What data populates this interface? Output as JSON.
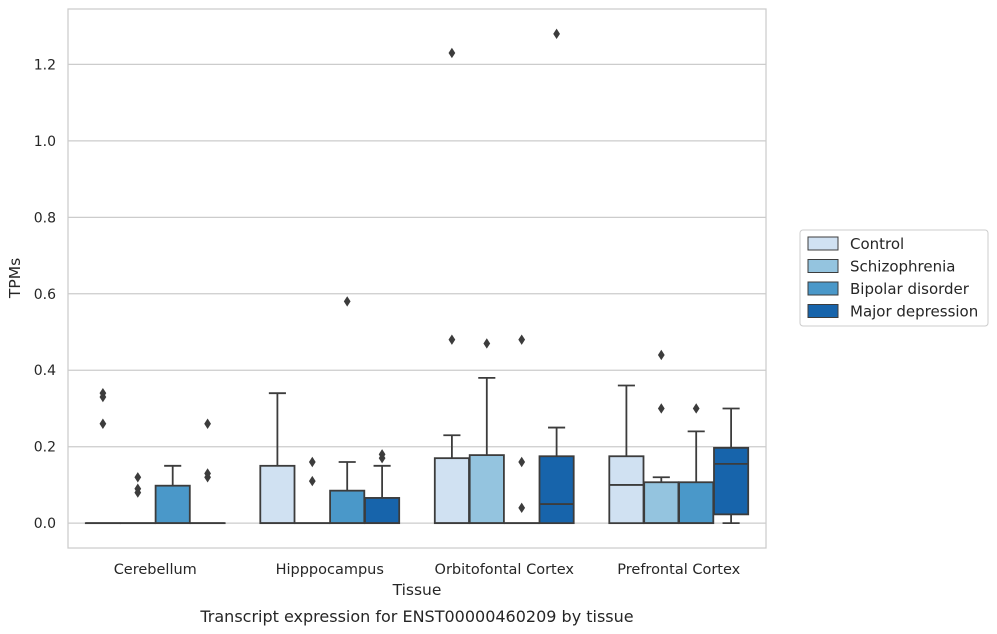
{
  "chart_data": {
    "type": "box",
    "title": "",
    "xlabel": "Tissue",
    "ylabel": "TPMs",
    "caption": "Transcript expression for ENST00000460209 by tissue",
    "ylim": [
      -0.065,
      1.345
    ],
    "yticks": [
      0.0,
      0.2,
      0.4,
      0.6,
      0.8,
      1.0,
      1.2
    ],
    "ytick_labels": [
      "0.0",
      "0.2",
      "0.4",
      "0.6",
      "0.8",
      "1.0",
      "1.2"
    ],
    "grid": "horizontal",
    "legend_position": "right",
    "categories": [
      "Cerebellum",
      "Hipppocampus",
      "Orbitofontal Cortex",
      "Prefrontal Cortex"
    ],
    "series": [
      {
        "name": "Control",
        "color": "#d0e1f2",
        "boxes": [
          {
            "q1": 0.0,
            "median": 0.0,
            "q3": 0.0,
            "whislo": 0.0,
            "whishi": 0.0,
            "fliers": [
              0.26,
              0.33,
              0.34
            ]
          },
          {
            "q1": 0.0,
            "median": 0.0,
            "q3": 0.15,
            "whislo": 0.0,
            "whishi": 0.34,
            "fliers": []
          },
          {
            "q1": 0.0,
            "median": 0.0,
            "q3": 0.17,
            "whislo": 0.0,
            "whishi": 0.23,
            "fliers": [
              0.48,
              1.23
            ]
          },
          {
            "q1": 0.0,
            "median": 0.1,
            "q3": 0.175,
            "whislo": 0.0,
            "whishi": 0.36,
            "fliers": []
          }
        ]
      },
      {
        "name": "Schizophrenia",
        "color": "#94c4df",
        "boxes": [
          {
            "q1": 0.0,
            "median": 0.0,
            "q3": 0.0,
            "whislo": 0.0,
            "whishi": 0.0,
            "fliers": [
              0.08,
              0.09,
              0.12
            ]
          },
          {
            "q1": 0.0,
            "median": 0.0,
            "q3": 0.0,
            "whislo": 0.0,
            "whishi": 0.0,
            "fliers": [
              0.11,
              0.16
            ]
          },
          {
            "q1": 0.0,
            "median": 0.0,
            "q3": 0.178,
            "whislo": 0.0,
            "whishi": 0.38,
            "fliers": [
              0.47
            ]
          },
          {
            "q1": 0.0,
            "median": 0.0,
            "q3": 0.107,
            "whislo": 0.0,
            "whishi": 0.12,
            "fliers": [
              0.3,
              0.44
            ]
          }
        ]
      },
      {
        "name": "Bipolar disorder",
        "color": "#4a98c9",
        "boxes": [
          {
            "q1": 0.0,
            "median": 0.0,
            "q3": 0.098,
            "whislo": 0.0,
            "whishi": 0.15,
            "fliers": []
          },
          {
            "q1": 0.0,
            "median": 0.0,
            "q3": 0.085,
            "whislo": 0.0,
            "whishi": 0.16,
            "fliers": [
              0.58
            ]
          },
          {
            "q1": 0.0,
            "median": 0.0,
            "q3": 0.0,
            "whislo": 0.0,
            "whishi": 0.0,
            "fliers": [
              0.04,
              0.16,
              0.48
            ]
          },
          {
            "q1": 0.0,
            "median": 0.0,
            "q3": 0.107,
            "whislo": 0.0,
            "whishi": 0.24,
            "fliers": [
              0.3
            ]
          }
        ]
      },
      {
        "name": "Major depression",
        "color": "#1764ab",
        "boxes": [
          {
            "q1": 0.0,
            "median": 0.0,
            "q3": 0.0,
            "whislo": 0.0,
            "whishi": 0.0,
            "fliers": [
              0.12,
              0.13,
              0.26
            ]
          },
          {
            "q1": 0.0,
            "median": 0.0,
            "q3": 0.066,
            "whislo": 0.0,
            "whishi": 0.15,
            "fliers": [
              0.17,
              0.18
            ]
          },
          {
            "q1": 0.0,
            "median": 0.05,
            "q3": 0.175,
            "whislo": 0.0,
            "whishi": 0.25,
            "fliers": [
              1.28
            ]
          },
          {
            "q1": 0.023,
            "median": 0.155,
            "q3": 0.197,
            "whislo": 0.0,
            "whishi": 0.3,
            "fliers": []
          }
        ]
      }
    ]
  }
}
